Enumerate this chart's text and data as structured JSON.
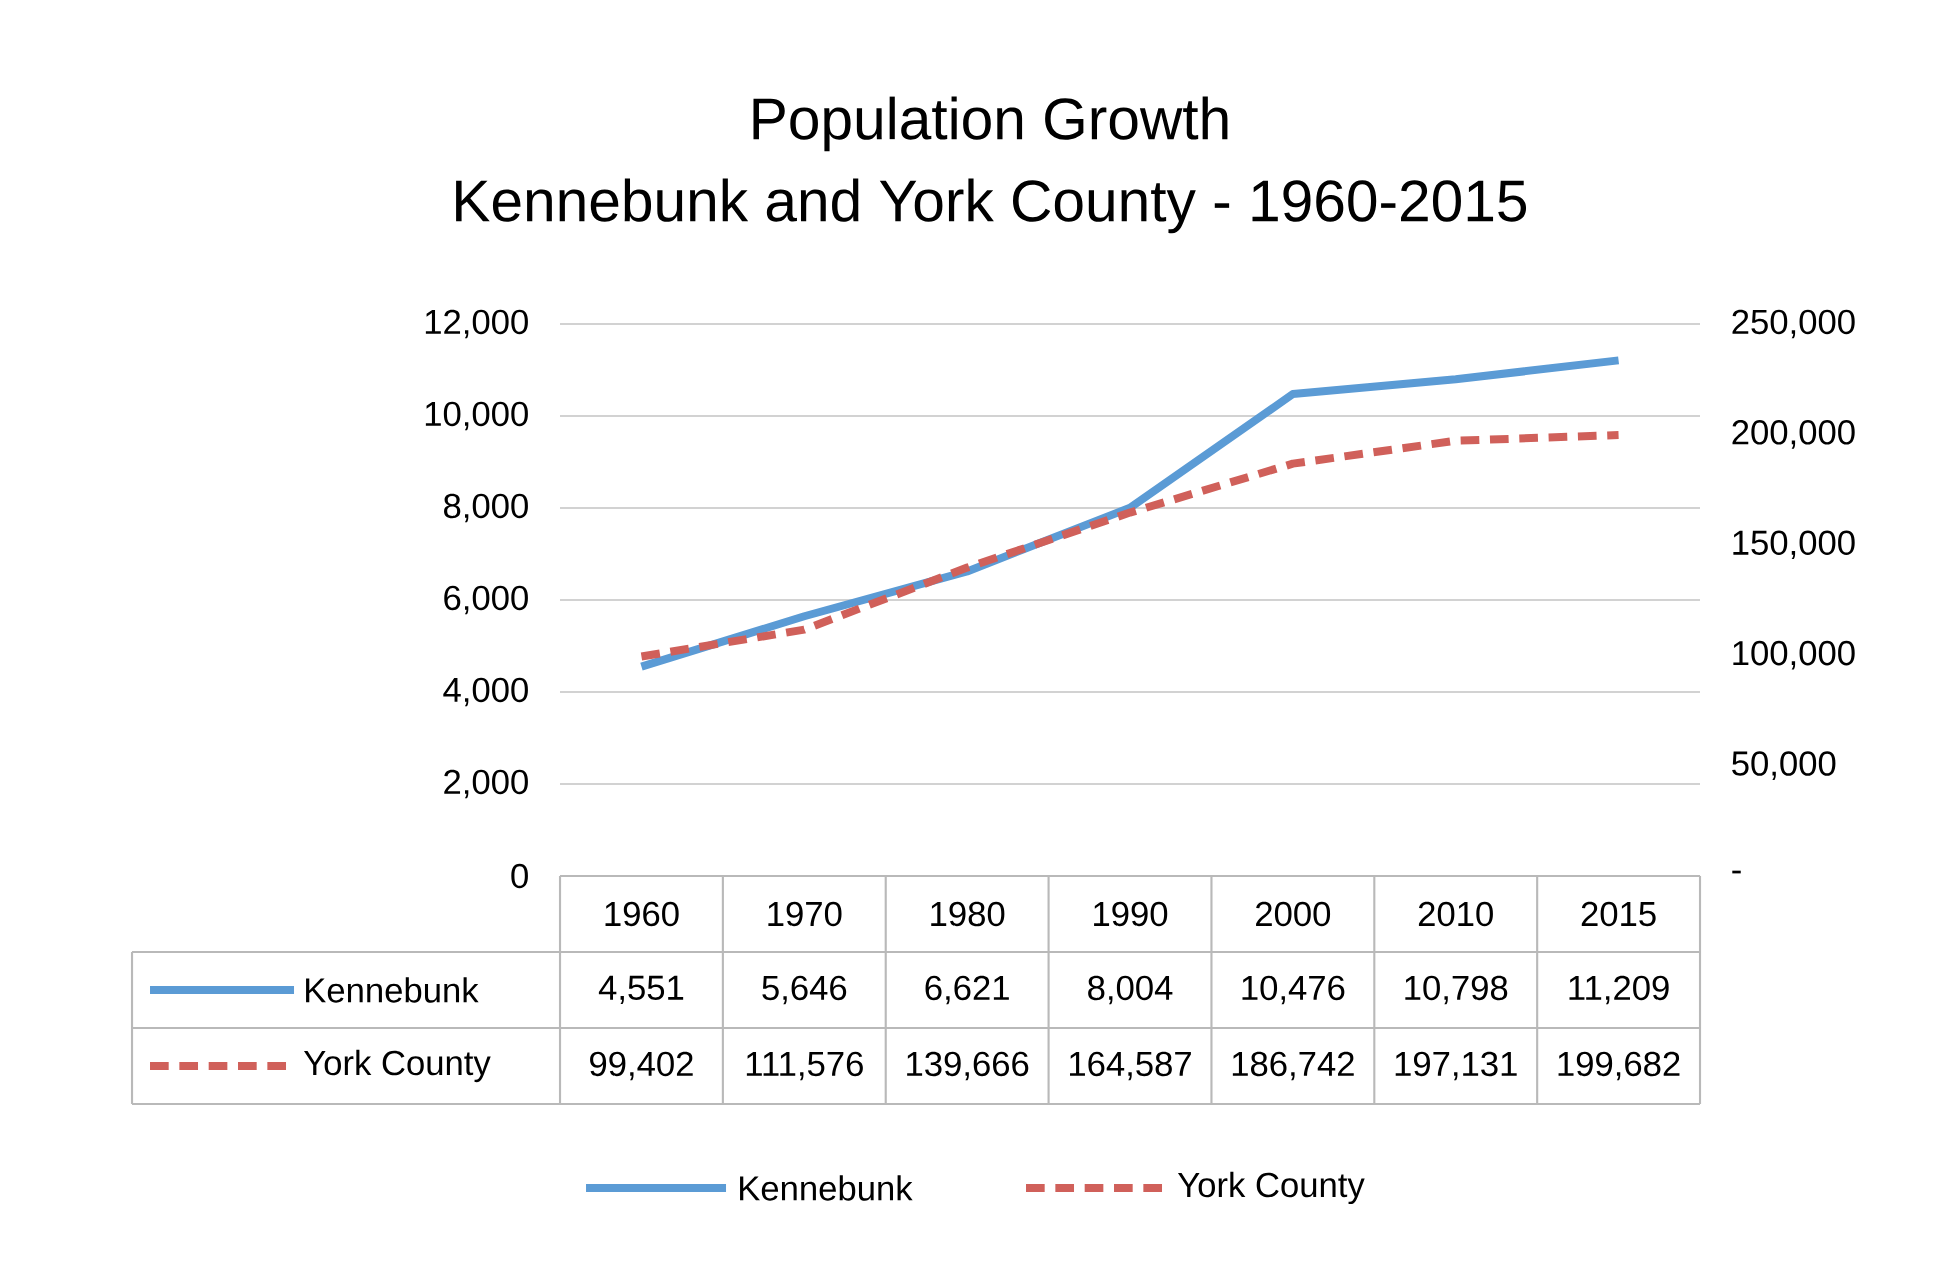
{
  "chart_data": {
    "type": "line",
    "title": "Population Growth",
    "subtitle": "Kennebunk and York County - 1960-2015",
    "categories": [
      "1960",
      "1970",
      "1980",
      "1990",
      "2000",
      "2010",
      "2015"
    ],
    "series": [
      {
        "name": "Kennebunk",
        "color": "#5b9bd5",
        "line_style": "solid",
        "values": [
          4551,
          5646,
          6621,
          8004,
          10476,
          10798,
          11209
        ],
        "value_labels": [
          "4,551",
          "5,646",
          "6,621",
          "8,004",
          "10,476",
          "10,798",
          "11,209"
        ]
      },
      {
        "name": "York County",
        "color": "#d0605a",
        "line_style": "dashed",
        "axis": "y2",
        "values": [
          99402,
          111576,
          139666,
          164587,
          186742,
          197131,
          199682
        ],
        "value_labels": [
          "99,402",
          "111,576",
          "139,666",
          "164,587",
          "186,742",
          "197,131",
          "199,682"
        ]
      }
    ],
    "ylim": [
      0,
      12000
    ],
    "yticks": [
      0,
      {
        "value": 2000,
        "label": "2,000"
      },
      {
        "value": 4000,
        "label": "4,000"
      },
      {
        "value": 6000,
        "label": "6,000"
      },
      {
        "value": 8000,
        "label": "8,000"
      },
      {
        "value": 10000,
        "label": "10,000"
      },
      {
        "value": 12000,
        "label": "12,000"
      }
    ],
    "y2lim": [
      0,
      250000
    ],
    "y2ticks": [
      {
        "value": 0,
        "label": "-"
      },
      {
        "value": 50000,
        "label": "50,000"
      },
      {
        "value": 100000,
        "label": "100,000"
      },
      {
        "value": 150000,
        "label": "150,000"
      },
      {
        "value": 200000,
        "label": "200,000"
      },
      {
        "value": 250000,
        "label": "250,000"
      }
    ],
    "grid": "y",
    "legend": "bottom"
  }
}
